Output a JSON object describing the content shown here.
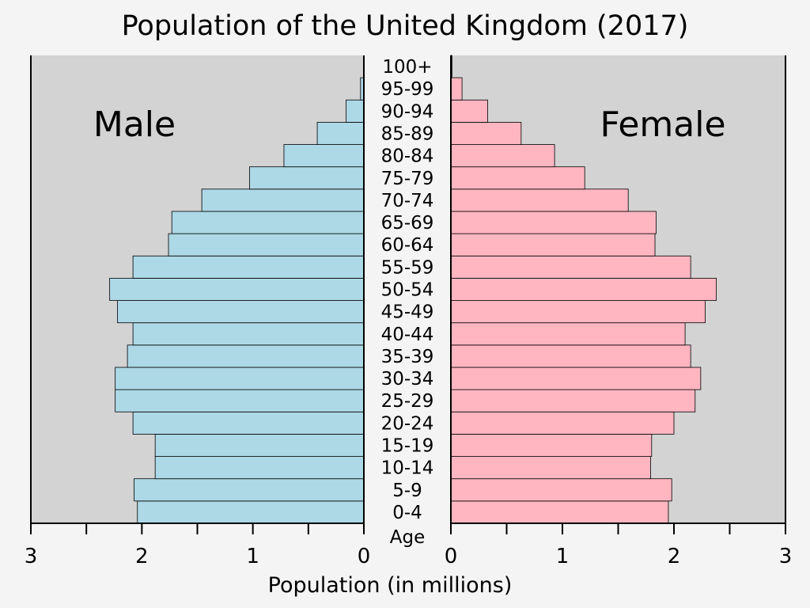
{
  "chart_data": {
    "type": "bar",
    "orientation": "horizontal",
    "title": "Population of the United Kingdom (2017)",
    "xlabel": "Population (in millions)",
    "ylabel": "Age",
    "xlim": [
      0,
      3
    ],
    "x_ticks": [
      "0",
      "1",
      "2",
      "3"
    ],
    "categories": [
      "0-4",
      "5-9",
      "10-14",
      "15-19",
      "20-24",
      "25-29",
      "30-34",
      "35-39",
      "40-44",
      "45-49",
      "50-54",
      "55-59",
      "60-64",
      "65-69",
      "70-74",
      "75-79",
      "80-84",
      "85-89",
      "90-94",
      "95-99",
      "100+"
    ],
    "series": [
      {
        "name": "Male",
        "color": "#add8e6",
        "values": [
          2.04,
          2.07,
          1.88,
          1.88,
          2.08,
          2.24,
          2.24,
          2.13,
          2.08,
          2.22,
          2.29,
          2.08,
          1.76,
          1.73,
          1.46,
          1.03,
          0.72,
          0.42,
          0.16,
          0.03,
          0.0
        ]
      },
      {
        "name": "Female",
        "color": "#ffb6c1",
        "values": [
          1.95,
          1.98,
          1.79,
          1.8,
          2.0,
          2.19,
          2.24,
          2.15,
          2.1,
          2.28,
          2.38,
          2.15,
          1.83,
          1.84,
          1.59,
          1.2,
          0.93,
          0.63,
          0.33,
          0.1,
          0.01
        ]
      }
    ],
    "grid": false,
    "plot_background": "#d3d3d3"
  }
}
